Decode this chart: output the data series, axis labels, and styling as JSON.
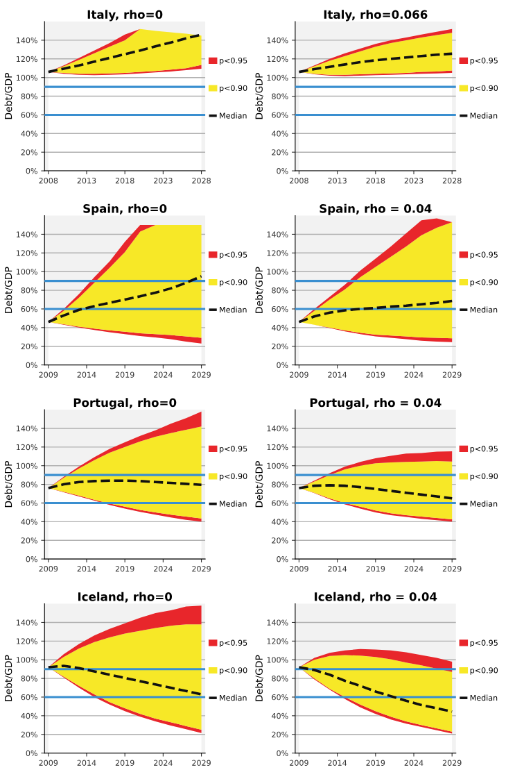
{
  "chart_data": [
    {
      "type": "area",
      "stacked": true,
      "title": "Italy, rho=0",
      "ylabel": "Debt/GDP",
      "x": [
        2008,
        2010,
        2012,
        2014,
        2016,
        2018,
        2020,
        2022,
        2024,
        2026,
        2028
      ],
      "xlim": [
        2007.5,
        2028.5
      ],
      "xticks": [
        2008,
        2013,
        2018,
        2023,
        2028
      ],
      "ylim": [
        0,
        160
      ],
      "yticks": [
        {
          "value": 0,
          "label": "0%"
        },
        {
          "value": 20,
          "label": "20%"
        },
        {
          "value": 40,
          "label": "40%"
        },
        {
          "value": 60,
          "label": "60%"
        },
        {
          "value": 80,
          "label": "80%"
        },
        {
          "value": 100,
          "label": "100%"
        },
        {
          "value": 120,
          "label": "120%"
        },
        {
          "value": 140,
          "label": "140%"
        }
      ],
      "grid": "y",
      "legend": "right",
      "ref_lines": [
        {
          "axis": "y",
          "value": 90,
          "color": "#3a8fd0"
        },
        {
          "axis": "y",
          "value": 60,
          "color": "#3a8fd0"
        }
      ],
      "series": [
        {
          "type": "area",
          "color": "#ffffff",
          "values": [
            106,
            104,
            103,
            102.5,
            103,
            103.5,
            104.5,
            105.5,
            106.5,
            108,
            109.5
          ]
        },
        {
          "name": "p<0.95",
          "type": "area",
          "color": "#e8262b",
          "values": [
            0,
            1,
            1,
            1.5,
            1.5,
            1.5,
            1.5,
            1.5,
            2,
            2,
            4
          ]
        },
        {
          "name": "p<0.90",
          "type": "area",
          "color": "#f7e827",
          "values": [
            0,
            7,
            15,
            22,
            28.5,
            35,
            46,
            43,
            40,
            37,
            31.5
          ]
        },
        {
          "type": "area",
          "color": "#e8262b",
          "values": [
            0,
            1,
            2,
            3,
            4,
            6,
            0,
            0,
            0,
            0,
            0
          ]
        },
        {
          "name": "Median",
          "type": "line",
          "color": "#111111",
          "line_style": "dashed",
          "values": [
            106,
            109.5,
            113,
            117,
            121,
            125,
            129,
            133.5,
            137.5,
            142,
            146
          ]
        }
      ]
    },
    {
      "type": "area",
      "stacked": true,
      "title": "Italy, rho=0.066",
      "ylabel": "Debt/GDP",
      "x": [
        2008,
        2010,
        2012,
        2014,
        2016,
        2018,
        2020,
        2022,
        2024,
        2026,
        2028
      ],
      "xlim": [
        2007.5,
        2028.5
      ],
      "xticks": [
        2008,
        2013,
        2018,
        2023,
        2028
      ],
      "ylim": [
        0,
        160
      ],
      "yticks": [
        {
          "value": 0,
          "label": "0%"
        },
        {
          "value": 20,
          "label": "20%"
        },
        {
          "value": 40,
          "label": "40%"
        },
        {
          "value": 60,
          "label": "60%"
        },
        {
          "value": 80,
          "label": "80%"
        },
        {
          "value": 100,
          "label": "100%"
        },
        {
          "value": 120,
          "label": "120%"
        },
        {
          "value": 140,
          "label": "140%"
        }
      ],
      "grid": "y",
      "legend": "right",
      "ref_lines": [
        {
          "axis": "y",
          "value": 90,
          "color": "#3a8fd0"
        },
        {
          "axis": "y",
          "value": 60,
          "color": "#3a8fd0"
        }
      ],
      "series": [
        {
          "type": "area",
          "color": "#ffffff",
          "values": [
            106,
            103.5,
            102,
            101.5,
            102,
            102.5,
            103,
            103.5,
            104,
            104.5,
            105
          ]
        },
        {
          "name": "p<0.95",
          "type": "area",
          "color": "#e8262b",
          "values": [
            0,
            0.5,
            1,
            1.5,
            1.5,
            1.5,
            1.5,
            1.5,
            2,
            2,
            2.5
          ]
        },
        {
          "name": "p<0.90",
          "type": "area",
          "color": "#f7e827",
          "values": [
            0,
            8,
            15,
            20,
            24.5,
            29,
            32.5,
            35,
            37,
            39,
            40.5
          ]
        },
        {
          "type": "area",
          "color": "#e8262b",
          "values": [
            0,
            1,
            2,
            3,
            3,
            3,
            3,
            3,
            3,
            3.5,
            4
          ]
        },
        {
          "name": "Median",
          "type": "line",
          "color": "#111111",
          "line_style": "dashed",
          "values": [
            106,
            109,
            111.5,
            114,
            116.5,
            118.5,
            120,
            121.5,
            123,
            124.5,
            125.5
          ]
        }
      ]
    },
    {
      "type": "area",
      "stacked": true,
      "title": "Spain, rho=0",
      "ylabel": "Debt/GDP",
      "x": [
        2009,
        2011,
        2013,
        2015,
        2017,
        2019,
        2021,
        2023,
        2025,
        2027,
        2029
      ],
      "xlim": [
        2008.5,
        2029.5
      ],
      "xticks": [
        2009,
        2014,
        2019,
        2024,
        2029
      ],
      "ylim": [
        0,
        160
      ],
      "yticks": [
        {
          "value": 0,
          "label": "0%"
        },
        {
          "value": 20,
          "label": "20%"
        },
        {
          "value": 40,
          "label": "40%"
        },
        {
          "value": 60,
          "label": "60%"
        },
        {
          "value": 80,
          "label": "80%"
        },
        {
          "value": 100,
          "label": "100%"
        },
        {
          "value": 120,
          "label": "120%"
        },
        {
          "value": 140,
          "label": "140%"
        }
      ],
      "grid": "y",
      "legend": "right",
      "ref_lines": [
        {
          "axis": "y",
          "value": 90,
          "color": "#3a8fd0"
        },
        {
          "axis": "y",
          "value": 60,
          "color": "#3a8fd0"
        }
      ],
      "series": [
        {
          "type": "area",
          "color": "#ffffff",
          "values": [
            46,
            43,
            40,
            37.5,
            35,
            33,
            31,
            29.5,
            27.5,
            25,
            23
          ]
        },
        {
          "name": "p<0.95",
          "type": "area",
          "color": "#e8262b",
          "values": [
            0,
            0.5,
            1,
            1.5,
            2,
            2.5,
            3,
            3.5,
            4.5,
            5.5,
            6
          ]
        },
        {
          "name": "p<0.90",
          "type": "area",
          "color": "#f7e827",
          "values": [
            0,
            14.5,
            31,
            49,
            67,
            85.5,
            109,
            117,
            118,
            119.5,
            121
          ]
        },
        {
          "type": "area",
          "color": "#e8262b",
          "values": [
            0,
            2,
            4,
            6,
            7,
            11,
            7,
            0,
            0,
            0,
            0
          ]
        },
        {
          "name": "Median",
          "type": "line",
          "color": "#111111",
          "line_style": "dashed",
          "values": [
            46,
            53,
            59,
            63,
            66.5,
            70,
            73.5,
            77.5,
            82,
            88,
            95
          ]
        }
      ]
    },
    {
      "type": "area",
      "stacked": true,
      "title": "Spain, rho = 0.04",
      "ylabel": "Debt/GDP",
      "x": [
        2009,
        2011,
        2013,
        2015,
        2017,
        2019,
        2021,
        2023,
        2025,
        2027,
        2029
      ],
      "xlim": [
        2008.5,
        2029.5
      ],
      "xticks": [
        2009,
        2014,
        2019,
        2024,
        2029
      ],
      "ylim": [
        0,
        160
      ],
      "yticks": [
        {
          "value": 0,
          "label": "0%"
        },
        {
          "value": 20,
          "label": "20%"
        },
        {
          "value": 40,
          "label": "40%"
        },
        {
          "value": 60,
          "label": "60%"
        },
        {
          "value": 80,
          "label": "80%"
        },
        {
          "value": 100,
          "label": "100%"
        },
        {
          "value": 120,
          "label": "120%"
        },
        {
          "value": 140,
          "label": "140%"
        }
      ],
      "grid": "y",
      "legend": "right",
      "ref_lines": [
        {
          "axis": "y",
          "value": 90,
          "color": "#3a8fd0"
        },
        {
          "axis": "y",
          "value": 60,
          "color": "#3a8fd0"
        }
      ],
      "series": [
        {
          "type": "area",
          "color": "#ffffff",
          "values": [
            46,
            43,
            39.5,
            36,
            33,
            30.5,
            29,
            27.5,
            26,
            25,
            24.5
          ]
        },
        {
          "name": "p<0.95",
          "type": "area",
          "color": "#e8262b",
          "values": [
            0,
            0,
            0.5,
            1,
            1.5,
            2,
            2.5,
            3,
            3.5,
            4,
            4
          ]
        },
        {
          "name": "p<0.90",
          "type": "area",
          "color": "#f7e827",
          "values": [
            0,
            15,
            30,
            44,
            59.5,
            72.5,
            84.5,
            96.5,
            109.5,
            118,
            124.5
          ]
        },
        {
          "type": "area",
          "color": "#e8262b",
          "values": [
            0,
            2,
            3,
            5,
            7,
            9,
            11,
            14,
            16,
            10,
            0
          ]
        },
        {
          "name": "Median",
          "type": "line",
          "color": "#111111",
          "line_style": "dashed",
          "values": [
            46,
            52,
            56,
            58.5,
            60,
            61,
            62.5,
            63.5,
            65,
            66.5,
            68.5
          ]
        }
      ]
    },
    {
      "type": "area",
      "stacked": true,
      "title": "Portugal, rho=0",
      "ylabel": "Debt/GDP",
      "x": [
        2009,
        2011,
        2013,
        2015,
        2017,
        2019,
        2021,
        2023,
        2025,
        2027,
        2029
      ],
      "xlim": [
        2008.5,
        2029.5
      ],
      "xticks": [
        2009,
        2014,
        2019,
        2024,
        2029
      ],
      "ylim": [
        0,
        160
      ],
      "yticks": [
        {
          "value": 0,
          "label": "0%"
        },
        {
          "value": 20,
          "label": "20%"
        },
        {
          "value": 40,
          "label": "40%"
        },
        {
          "value": 60,
          "label": "60%"
        },
        {
          "value": 80,
          "label": "80%"
        },
        {
          "value": 100,
          "label": "100%"
        },
        {
          "value": 120,
          "label": "120%"
        },
        {
          "value": 140,
          "label": "140%"
        }
      ],
      "grid": "y",
      "legend": "right",
      "ref_lines": [
        {
          "axis": "y",
          "value": 90,
          "color": "#3a8fd0"
        },
        {
          "axis": "y",
          "value": 60,
          "color": "#3a8fd0"
        }
      ],
      "series": [
        {
          "type": "area",
          "color": "#ffffff",
          "values": [
            76,
            71.5,
            67,
            62.5,
            58,
            54,
            50.5,
            47.5,
            44.5,
            42,
            40
          ]
        },
        {
          "name": "p<0.95",
          "type": "area",
          "color": "#e8262b",
          "values": [
            0,
            0.5,
            1,
            1,
            1.5,
            2,
            2,
            2.5,
            3,
            3.5,
            3.5
          ]
        },
        {
          "name": "p<0.90",
          "type": "area",
          "color": "#f7e827",
          "values": [
            0,
            15,
            29,
            42.5,
            54.5,
            64,
            73.5,
            81,
            87.5,
            93,
            98.5
          ]
        },
        {
          "type": "area",
          "color": "#e8262b",
          "values": [
            0,
            1,
            2,
            3,
            4,
            5,
            6,
            7,
            10,
            12.5,
            16
          ]
        },
        {
          "name": "Median",
          "type": "line",
          "color": "#111111",
          "line_style": "dashed",
          "values": [
            76,
            80,
            82.5,
            83.5,
            84,
            84,
            83.5,
            82.5,
            81.5,
            80.5,
            79.5
          ]
        }
      ]
    },
    {
      "type": "area",
      "stacked": true,
      "title": "Portugal, rho = 0.04",
      "ylabel": "Debt/GDP",
      "x": [
        2009,
        2011,
        2013,
        2015,
        2017,
        2019,
        2021,
        2023,
        2025,
        2027,
        2029
      ],
      "xlim": [
        2008.5,
        2029.5
      ],
      "xticks": [
        2009,
        2014,
        2019,
        2024,
        2029
      ],
      "ylim": [
        0,
        160
      ],
      "yticks": [
        {
          "value": 0,
          "label": "0%"
        },
        {
          "value": 20,
          "label": "20%"
        },
        {
          "value": 40,
          "label": "40%"
        },
        {
          "value": 60,
          "label": "60%"
        },
        {
          "value": 80,
          "label": "80%"
        },
        {
          "value": 100,
          "label": "100%"
        },
        {
          "value": 120,
          "label": "120%"
        },
        {
          "value": 140,
          "label": "140%"
        }
      ],
      "grid": "y",
      "legend": "right",
      "ref_lines": [
        {
          "axis": "y",
          "value": 90,
          "color": "#3a8fd0"
        },
        {
          "axis": "y",
          "value": 60,
          "color": "#3a8fd0"
        }
      ],
      "series": [
        {
          "type": "area",
          "color": "#ffffff",
          "values": [
            76,
            70.5,
            64,
            58.5,
            54,
            50,
            47,
            45,
            43,
            41.5,
            40
          ]
        },
        {
          "name": "p<0.95",
          "type": "area",
          "color": "#e8262b",
          "values": [
            0,
            0.5,
            1,
            1.5,
            2,
            2,
            2,
            2,
            2.5,
            2.5,
            2.5
          ]
        },
        {
          "name": "p<0.90",
          "type": "area",
          "color": "#f7e827",
          "values": [
            0,
            12,
            25,
            36,
            44,
            50.5,
            54.5,
            57,
            59,
            61,
            62
          ]
        },
        {
          "type": "area",
          "color": "#e8262b",
          "values": [
            0,
            1,
            2,
            3,
            4,
            5.5,
            7,
            9,
            9,
            10,
            11
          ]
        },
        {
          "name": "Median",
          "type": "line",
          "color": "#111111",
          "line_style": "dashed",
          "values": [
            76,
            78.5,
            79,
            78.5,
            77,
            75,
            73,
            71,
            69,
            67,
            65
          ]
        }
      ]
    },
    {
      "type": "area",
      "stacked": true,
      "title": "Iceland, rho=0",
      "ylabel": "Debt/GDP",
      "x": [
        2009,
        2011,
        2013,
        2015,
        2017,
        2019,
        2021,
        2023,
        2025,
        2027,
        2029
      ],
      "xlim": [
        2008.5,
        2029.5
      ],
      "xticks": [
        2009,
        2014,
        2019,
        2024,
        2029
      ],
      "ylim": [
        0,
        160
      ],
      "yticks": [
        {
          "value": 0,
          "label": "0%"
        },
        {
          "value": 20,
          "label": "20%"
        },
        {
          "value": 40,
          "label": "40%"
        },
        {
          "value": 60,
          "label": "60%"
        },
        {
          "value": 80,
          "label": "80%"
        },
        {
          "value": 100,
          "label": "100%"
        },
        {
          "value": 120,
          "label": "120%"
        },
        {
          "value": 140,
          "label": "140%"
        }
      ],
      "grid": "y",
      "legend": "right",
      "ref_lines": [
        {
          "axis": "y",
          "value": 90,
          "color": "#3a8fd0"
        },
        {
          "axis": "y",
          "value": 60,
          "color": "#3a8fd0"
        }
      ],
      "series": [
        {
          "type": "area",
          "color": "#ffffff",
          "values": [
            92,
            81,
            70,
            60,
            52,
            45,
            39,
            34,
            29.5,
            25.5,
            21.5
          ]
        },
        {
          "name": "p<0.95",
          "type": "area",
          "color": "#e8262b",
          "values": [
            0,
            1,
            2,
            3,
            2.5,
            3,
            3,
            3,
            3.5,
            3.5,
            3.5
          ]
        },
        {
          "name": "p<0.90",
          "type": "area",
          "color": "#f7e827",
          "values": [
            0,
            21,
            40,
            56,
            69.5,
            80,
            89,
            97,
            103.5,
            109,
            113
          ]
        },
        {
          "type": "area",
          "color": "#e8262b",
          "values": [
            0,
            3,
            5,
            7,
            9,
            11,
            14,
            16,
            16.5,
            19,
            20
          ]
        },
        {
          "name": "Median",
          "type": "line",
          "color": "#111111",
          "line_style": "dashed",
          "values": [
            92,
            93.5,
            91,
            87.5,
            84,
            80.5,
            77,
            73.5,
            70,
            66.5,
            63
          ]
        }
      ]
    },
    {
      "type": "area",
      "stacked": true,
      "title": "Iceland, rho = 0.04",
      "ylabel": "Debt/GDP",
      "x": [
        2009,
        2011,
        2013,
        2015,
        2017,
        2019,
        2021,
        2023,
        2025,
        2027,
        2029
      ],
      "xlim": [
        2008.5,
        2029.5
      ],
      "xticks": [
        2009,
        2014,
        2019,
        2024,
        2029
      ],
      "ylim": [
        0,
        160
      ],
      "yticks": [
        {
          "value": 0,
          "label": "0%"
        },
        {
          "value": 20,
          "label": "20%"
        },
        {
          "value": 40,
          "label": "40%"
        },
        {
          "value": 60,
          "label": "60%"
        },
        {
          "value": 80,
          "label": "80%"
        },
        {
          "value": 100,
          "label": "100%"
        },
        {
          "value": 120,
          "label": "120%"
        },
        {
          "value": 140,
          "label": "140%"
        }
      ],
      "grid": "y",
      "legend": "right",
      "ref_lines": [
        {
          "axis": "y",
          "value": 90,
          "color": "#3a8fd0"
        },
        {
          "axis": "y",
          "value": 60,
          "color": "#3a8fd0"
        }
      ],
      "series": [
        {
          "type": "area",
          "color": "#ffffff",
          "values": [
            92,
            79,
            68,
            58,
            49,
            42,
            36,
            31.5,
            28,
            24.5,
            21
          ]
        },
        {
          "name": "p<0.95",
          "type": "area",
          "color": "#e8262b",
          "values": [
            0,
            1,
            1,
            2,
            3,
            3,
            3,
            2.5,
            2,
            2,
            2
          ]
        },
        {
          "name": "p<0.90",
          "type": "area",
          "color": "#f7e827",
          "values": [
            0,
            20,
            35,
            45,
            52.5,
            58,
            61.5,
            63,
            64,
            64,
            64
          ]
        },
        {
          "type": "area",
          "color": "#e8262b",
          "values": [
            0,
            2,
            3.5,
            5,
            7,
            8,
            9.5,
            11,
            11,
            11.5,
            11
          ]
        },
        {
          "name": "Median",
          "type": "line",
          "color": "#111111",
          "line_style": "dashed",
          "values": [
            92,
            89,
            84,
            77.5,
            72,
            66,
            61,
            56,
            51.5,
            48,
            44.5
          ]
        }
      ]
    }
  ]
}
